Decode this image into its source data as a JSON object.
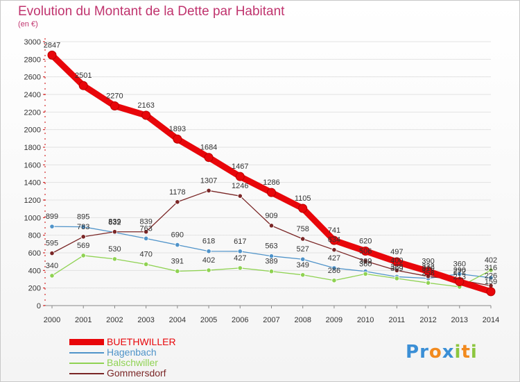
{
  "title": "Evolution du Montant de la Dette par Habitant",
  "subtitle": "(en €)",
  "logo": {
    "text": "Proxiti",
    "letters": [
      "P",
      "r",
      "o",
      "x",
      "i",
      "t",
      "i"
    ],
    "colors": [
      "#3b8fd6",
      "#3b8fd6",
      "#f28a1e",
      "#3b8fd6",
      "#8cc63f",
      "#f28a1e",
      "#8cc63f"
    ]
  },
  "chart_data": {
    "type": "line",
    "x": [
      "2000",
      "2001",
      "2002",
      "2003",
      "2004",
      "2005",
      "2006",
      "2007",
      "2008",
      "2009",
      "2010",
      "2011",
      "2012",
      "2013",
      "2014"
    ],
    "ylim": [
      0,
      3000
    ],
    "yticks": [
      "0",
      "200",
      "400",
      "600",
      "800",
      "1000",
      "1200",
      "1400",
      "1600",
      "1800",
      "2000",
      "2200",
      "2400",
      "2600",
      "2800",
      "3000"
    ],
    "grid": true,
    "legend_position": "bottom-left",
    "series": [
      {
        "name": "BUETHWILLER",
        "color": "#e8060a",
        "values": [
          2847,
          2501,
          2270,
          2163,
          1893,
          1684,
          1467,
          1286,
          1105,
          741,
          620,
          497,
          390,
          272,
          159
        ],
        "labels": [
          "2847",
          "2501",
          "2270",
          "2163",
          "1893",
          "1684",
          "1467",
          "1286",
          "1105",
          "741",
          "620",
          "497",
          "390",
          "272",
          "159"
        ]
      },
      {
        "name": "Hagenbach",
        "color": "#4f93c9",
        "values": [
          899,
          895,
          832,
          763,
          690,
          618,
          617,
          563,
          527,
          427,
          389,
          328,
          310,
          360,
          316
        ],
        "labels": [
          "899",
          "895",
          "832",
          "763",
          "690",
          "618",
          "617",
          "563",
          "527",
          "427",
          "389",
          "328",
          "310",
          "360",
          "316"
        ]
      },
      {
        "name": "Balschwiller",
        "color": "#8fd252",
        "values": [
          340,
          569,
          530,
          470,
          391,
          402,
          427,
          389,
          349,
          286,
          360,
          309,
          258,
          213,
          402
        ],
        "labels": [
          "340",
          "569",
          "530",
          "470",
          "391",
          "402",
          "427",
          "389",
          "349",
          "286",
          "360",
          "309",
          "258",
          "213",
          "402"
        ]
      },
      {
        "name": "Gommersdorf",
        "color": "#7a2626",
        "values": [
          595,
          783,
          839,
          839,
          1178,
          1307,
          1246,
          909,
          758,
          634,
          506,
          400,
          332,
          290,
          226
        ],
        "labels": [
          "595",
          "783",
          "839",
          "839",
          "1178",
          "1307",
          "1246",
          "909",
          "758",
          "634",
          "506",
          "400",
          "332",
          "290",
          "226"
        ]
      }
    ]
  }
}
